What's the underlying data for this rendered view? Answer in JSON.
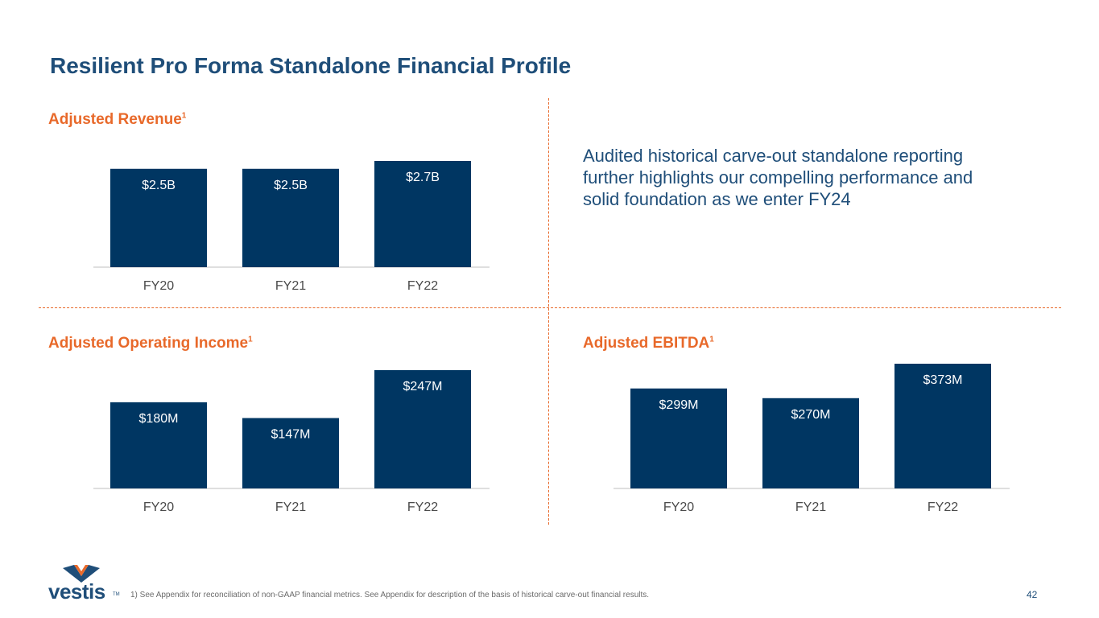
{
  "slide": {
    "title": "Resilient Pro Forma Standalone Financial Profile",
    "narrative": "Audited historical carve-out standalone reporting further highlights our compelling performance and solid foundation as we enter FY24",
    "footnote": "1) See Appendix for reconciliation of non-GAAP financial metrics. See Appendix for description of the basis of historical carve-out financial results.",
    "page_number": "42",
    "logo_text": "vestis",
    "logo_tm": "TM",
    "footnote_marker": "1"
  },
  "colors": {
    "bar": "#003662",
    "title": "#1f4e79",
    "accent": "#e8692a"
  },
  "chart_data": [
    {
      "type": "bar",
      "title": "Adjusted Revenue",
      "unit": "$B",
      "categories": [
        "FY20",
        "FY21",
        "FY22"
      ],
      "values": [
        2.5,
        2.5,
        2.7
      ],
      "data_labels": [
        "$2.5B",
        "$2.5B",
        "$2.7B"
      ],
      "grid": false,
      "legend": "none"
    },
    {
      "type": "bar",
      "title": "Adjusted Operating Income",
      "unit": "$M",
      "categories": [
        "FY20",
        "FY21",
        "FY22"
      ],
      "values": [
        180,
        147,
        247
      ],
      "data_labels": [
        "$180M",
        "$147M",
        "$247M"
      ],
      "grid": false,
      "legend": "none"
    },
    {
      "type": "bar",
      "title": "Adjusted EBITDA",
      "unit": "$M",
      "categories": [
        "FY20",
        "FY21",
        "FY22"
      ],
      "values": [
        299,
        270,
        373
      ],
      "data_labels": [
        "$299M",
        "$270M",
        "$373M"
      ],
      "grid": false,
      "legend": "none"
    }
  ]
}
